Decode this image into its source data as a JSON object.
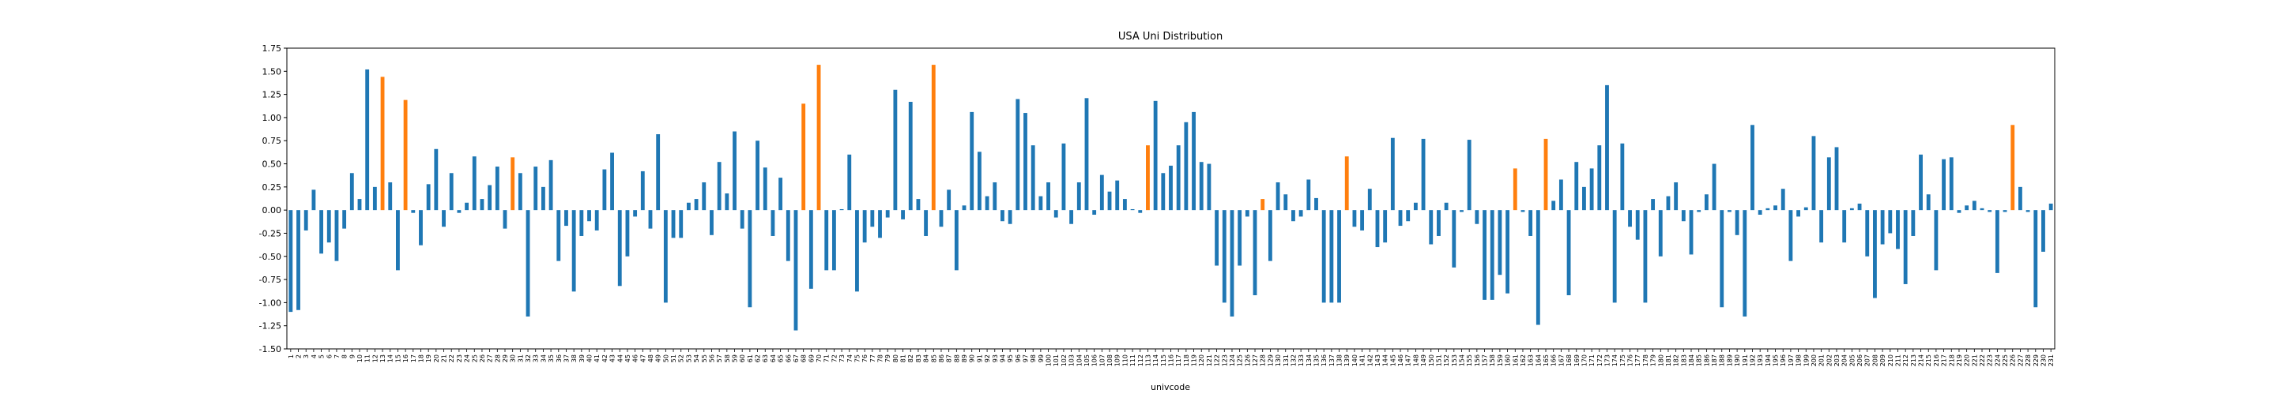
{
  "chart_data": {
    "type": "bar",
    "title": "USA Uni Distribution",
    "x_label": "univcode",
    "categories": [
      "1",
      "2",
      "3",
      "4",
      "5",
      "6",
      "7",
      "8",
      "9",
      "10",
      "11",
      "12",
      "13",
      "14",
      "15",
      "16",
      "17",
      "18",
      "19",
      "20",
      "21",
      "22",
      "23",
      "24",
      "25",
      "26",
      "27",
      "28",
      "29",
      "30",
      "31",
      "32",
      "33",
      "34",
      "35",
      "36",
      "37",
      "38",
      "39",
      "40",
      "41",
      "42",
      "43",
      "44",
      "45",
      "46",
      "47",
      "48",
      "49",
      "50",
      "51",
      "52",
      "53",
      "54",
      "55",
      "56",
      "57",
      "58",
      "59",
      "60",
      "61",
      "62",
      "63",
      "64",
      "65",
      "66",
      "67",
      "68",
      "69",
      "70",
      "71",
      "72",
      "73",
      "74",
      "75",
      "76",
      "77",
      "78",
      "79",
      "80",
      "81",
      "82",
      "83",
      "84",
      "85",
      "86",
      "87",
      "88",
      "89",
      "90",
      "91",
      "92",
      "93",
      "94",
      "95",
      "96",
      "97",
      "98",
      "99",
      "100",
      "101",
      "102",
      "103",
      "104",
      "105",
      "106",
      "107",
      "108",
      "109",
      "110",
      "111",
      "112",
      "113",
      "114",
      "115",
      "116",
      "117",
      "118",
      "119",
      "120",
      "121",
      "122",
      "123",
      "124",
      "125",
      "126",
      "127",
      "128",
      "129",
      "130",
      "131",
      "132",
      "133",
      "134",
      "135",
      "136",
      "137",
      "138",
      "139",
      "140",
      "141",
      "142",
      "143",
      "144",
      "145",
      "146",
      "147",
      "148",
      "149",
      "150",
      "151",
      "152",
      "153",
      "154",
      "155",
      "156",
      "157",
      "158",
      "159",
      "160",
      "161",
      "162",
      "163",
      "164",
      "165",
      "166",
      "167",
      "168",
      "169",
      "170",
      "171",
      "172",
      "173",
      "174",
      "175",
      "176",
      "177",
      "178",
      "179",
      "180",
      "181",
      "182",
      "183",
      "184",
      "185",
      "186",
      "187",
      "188",
      "189",
      "190",
      "191",
      "192",
      "193",
      "194",
      "195",
      "196",
      "197",
      "198",
      "199",
      "200",
      "201",
      "202",
      "203",
      "204",
      "205",
      "206",
      "207",
      "208",
      "209",
      "210",
      "211",
      "212",
      "213",
      "214",
      "215",
      "216",
      "217",
      "218",
      "219",
      "220",
      "221",
      "222",
      "223",
      "224",
      "225",
      "226",
      "227",
      "228",
      "229",
      "230",
      "231"
    ],
    "values": [
      -1.1,
      -1.08,
      -0.22,
      0.22,
      -0.47,
      -0.35,
      -0.55,
      -0.2,
      0.4,
      0.12,
      1.52,
      0.25,
      1.44,
      0.3,
      -0.65,
      1.19,
      -0.03,
      -0.38,
      0.28,
      0.66,
      -0.18,
      0.4,
      -0.03,
      0.08,
      0.58,
      0.12,
      0.27,
      0.47,
      -0.2,
      0.57,
      0.4,
      -1.15,
      0.47,
      0.25,
      0.54,
      -0.55,
      -0.17,
      -0.88,
      -0.28,
      -0.12,
      -0.22,
      0.44,
      0.62,
      -0.82,
      -0.5,
      -0.07,
      0.42,
      -0.2,
      0.82,
      -1.0,
      -0.3,
      -0.3,
      0.08,
      0.12,
      0.3,
      -0.27,
      0.52,
      0.18,
      0.85,
      -0.2,
      -1.05,
      0.75,
      0.46,
      -0.28,
      0.35,
      -0.55,
      -1.3,
      1.15,
      -0.85,
      1.57,
      -0.65,
      -0.65,
      0.01,
      0.6,
      -0.88,
      -0.35,
      -0.18,
      -0.3,
      -0.08,
      1.3,
      -0.1,
      1.17,
      0.12,
      -0.28,
      1.57,
      -0.18,
      0.22,
      -0.65,
      0.05,
      1.06,
      0.63,
      0.15,
      0.3,
      -0.12,
      -0.15,
      1.2,
      1.05,
      0.7,
      0.15,
      0.3,
      -0.08,
      0.72,
      -0.15,
      0.3,
      1.21,
      -0.05,
      0.38,
      0.2,
      0.32,
      0.12,
      0.01,
      -0.03,
      0.7,
      1.18,
      0.4,
      0.48,
      0.7,
      0.95,
      1.06,
      0.52,
      0.5,
      -0.6,
      -1.0,
      -1.15,
      -0.6,
      -0.07,
      -0.92,
      0.12,
      -0.55,
      0.3,
      0.17,
      -0.12,
      -0.07,
      0.33,
      0.13,
      -1.0,
      -1.0,
      -1.0,
      0.58,
      -0.18,
      -0.22,
      0.23,
      -0.4,
      -0.35,
      0.78,
      -0.17,
      -0.12,
      0.08,
      0.77,
      -0.37,
      -0.28,
      0.08,
      -0.62,
      -0.02,
      0.76,
      -0.15,
      -0.97,
      -0.97,
      -0.7,
      -0.9,
      0.45,
      -0.02,
      -0.28,
      -1.24,
      0.77,
      0.1,
      0.33,
      -0.92,
      0.52,
      0.25,
      0.45,
      0.7,
      1.35,
      -1.0,
      0.72,
      -0.18,
      -0.32,
      -1.0,
      0.12,
      -0.5,
      0.15,
      0.3,
      -0.12,
      -0.48,
      -0.02,
      0.17,
      0.5,
      -1.05,
      -0.02,
      -0.27,
      -1.15,
      0.92,
      -0.05,
      0.02,
      0.05,
      0.23,
      -0.55,
      -0.07,
      0.03,
      0.8,
      -0.35,
      0.57,
      0.68,
      -0.35,
      0.02,
      0.07,
      -0.5,
      -0.95,
      -0.37,
      -0.25,
      -0.42,
      -0.8,
      -0.28,
      0.6,
      0.17,
      -0.65,
      0.55,
      0.57,
      -0.03,
      0.05,
      0.1,
      0.02,
      -0.02,
      -0.68,
      -0.02,
      0.92,
      0.25,
      -0.02,
      -1.05,
      -0.45,
      0.07
    ],
    "colors": [
      "#1f77b4",
      "#1f77b4",
      "#1f77b4",
      "#1f77b4",
      "#1f77b4",
      "#1f77b4",
      "#1f77b4",
      "#1f77b4",
      "#1f77b4",
      "#1f77b4",
      "#1f77b4",
      "#1f77b4",
      "#ff7f0e",
      "#1f77b4",
      "#1f77b4",
      "#ff7f0e",
      "#1f77b4",
      "#1f77b4",
      "#1f77b4",
      "#1f77b4",
      "#1f77b4",
      "#1f77b4",
      "#1f77b4",
      "#1f77b4",
      "#1f77b4",
      "#1f77b4",
      "#1f77b4",
      "#1f77b4",
      "#1f77b4",
      "#ff7f0e",
      "#1f77b4",
      "#1f77b4",
      "#1f77b4",
      "#1f77b4",
      "#1f77b4",
      "#1f77b4",
      "#1f77b4",
      "#1f77b4",
      "#1f77b4",
      "#1f77b4",
      "#1f77b4",
      "#1f77b4",
      "#1f77b4",
      "#1f77b4",
      "#1f77b4",
      "#1f77b4",
      "#1f77b4",
      "#1f77b4",
      "#1f77b4",
      "#1f77b4",
      "#1f77b4",
      "#1f77b4",
      "#1f77b4",
      "#1f77b4",
      "#1f77b4",
      "#1f77b4",
      "#1f77b4",
      "#1f77b4",
      "#1f77b4",
      "#1f77b4",
      "#1f77b4",
      "#1f77b4",
      "#1f77b4",
      "#1f77b4",
      "#1f77b4",
      "#1f77b4",
      "#1f77b4",
      "#ff7f0e",
      "#1f77b4",
      "#ff7f0e",
      "#1f77b4",
      "#1f77b4",
      "#1f77b4",
      "#1f77b4",
      "#1f77b4",
      "#1f77b4",
      "#1f77b4",
      "#1f77b4",
      "#1f77b4",
      "#1f77b4",
      "#1f77b4",
      "#1f77b4",
      "#1f77b4",
      "#1f77b4",
      "#ff7f0e",
      "#1f77b4",
      "#1f77b4",
      "#1f77b4",
      "#1f77b4",
      "#1f77b4",
      "#1f77b4",
      "#1f77b4",
      "#1f77b4",
      "#1f77b4",
      "#1f77b4",
      "#1f77b4",
      "#1f77b4",
      "#1f77b4",
      "#1f77b4",
      "#1f77b4",
      "#1f77b4",
      "#1f77b4",
      "#1f77b4",
      "#1f77b4",
      "#1f77b4",
      "#1f77b4",
      "#1f77b4",
      "#1f77b4",
      "#1f77b4",
      "#1f77b4",
      "#1f77b4",
      "#1f77b4",
      "#ff7f0e",
      "#1f77b4",
      "#1f77b4",
      "#1f77b4",
      "#1f77b4",
      "#1f77b4",
      "#1f77b4",
      "#1f77b4",
      "#1f77b4",
      "#1f77b4",
      "#1f77b4",
      "#1f77b4",
      "#1f77b4",
      "#1f77b4",
      "#1f77b4",
      "#ff7f0e",
      "#1f77b4",
      "#1f77b4",
      "#1f77b4",
      "#1f77b4",
      "#1f77b4",
      "#1f77b4",
      "#1f77b4",
      "#1f77b4",
      "#1f77b4",
      "#1f77b4",
      "#ff7f0e",
      "#1f77b4",
      "#1f77b4",
      "#1f77b4",
      "#1f77b4",
      "#1f77b4",
      "#1f77b4",
      "#1f77b4",
      "#1f77b4",
      "#1f77b4",
      "#1f77b4",
      "#1f77b4",
      "#1f77b4",
      "#1f77b4",
      "#1f77b4",
      "#1f77b4",
      "#1f77b4",
      "#1f77b4",
      "#1f77b4",
      "#1f77b4",
      "#1f77b4",
      "#1f77b4",
      "#ff7f0e",
      "#1f77b4",
      "#1f77b4",
      "#1f77b4",
      "#ff7f0e",
      "#1f77b4",
      "#1f77b4",
      "#1f77b4",
      "#1f77b4",
      "#1f77b4",
      "#1f77b4",
      "#1f77b4",
      "#1f77b4",
      "#1f77b4",
      "#1f77b4",
      "#1f77b4",
      "#1f77b4",
      "#1f77b4",
      "#1f77b4",
      "#1f77b4",
      "#1f77b4",
      "#1f77b4",
      "#1f77b4",
      "#1f77b4",
      "#1f77b4",
      "#1f77b4",
      "#1f77b4",
      "#1f77b4",
      "#1f77b4",
      "#1f77b4",
      "#1f77b4",
      "#1f77b4",
      "#1f77b4",
      "#1f77b4",
      "#1f77b4",
      "#1f77b4",
      "#1f77b4",
      "#1f77b4",
      "#1f77b4",
      "#1f77b4",
      "#1f77b4",
      "#1f77b4",
      "#1f77b4",
      "#1f77b4",
      "#1f77b4",
      "#1f77b4",
      "#1f77b4",
      "#1f77b4",
      "#1f77b4",
      "#1f77b4",
      "#1f77b4",
      "#1f77b4",
      "#1f77b4",
      "#1f77b4",
      "#1f77b4",
      "#1f77b4",
      "#1f77b4",
      "#1f77b4",
      "#1f77b4",
      "#1f77b4",
      "#1f77b4",
      "#1f77b4",
      "#1f77b4",
      "#1f77b4",
      "#1f77b4",
      "#ff7f0e",
      "#1f77b4",
      "#1f77b4",
      "#1f77b4",
      "#1f77b4",
      "#1f77b4"
    ],
    "ylim": [
      -1.5,
      1.75
    ],
    "yticks": [
      {
        "value": -1.5,
        "label": "-1.50"
      },
      -1.25,
      {
        "value": -1.0,
        "label": "-1.00"
      },
      -0.75,
      {
        "value": -0.5,
        "label": "-0.50"
      },
      -0.25,
      {
        "value": 0,
        "label": "0.00"
      },
      0.25,
      {
        "value": 0.5,
        "label": "0.50"
      },
      0.75,
      {
        "value": 1.0,
        "label": "1.00"
      },
      1.25,
      {
        "value": 1.5,
        "label": "1.50"
      },
      1.75
    ],
    "grid": false
  }
}
